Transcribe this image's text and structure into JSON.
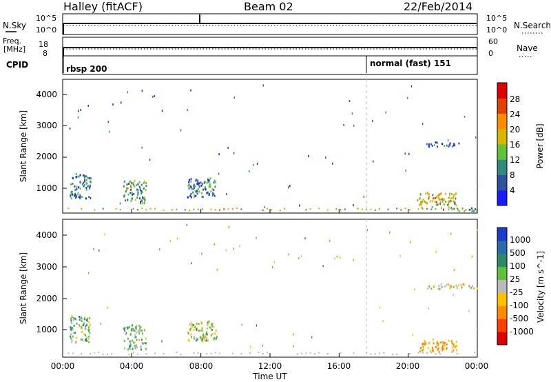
{
  "header": {
    "station": "Halley (fitACF)",
    "beam": "Beam 02",
    "date": "22/Feb/2014"
  },
  "noise_panel": {
    "left_label": "N.Sky",
    "right_label": "N.Search",
    "left_ticks": [
      "10^5",
      "10^0"
    ],
    "right_ticks": [
      "10^5",
      "10^0"
    ]
  },
  "freq_panel": {
    "left_label_top": "Freq.",
    "left_label_unit": "[MHz]",
    "left_ticks": [
      "18",
      "8"
    ],
    "right_label": "Nave",
    "right_ticks": [
      "60",
      "0"
    ]
  },
  "cpid_panel": {
    "label": "CPID",
    "segments": [
      {
        "start_hour": 0.1,
        "text": "rbsp 200"
      },
      {
        "start_hour": 17.55,
        "text": "normal (fast) 151"
      }
    ]
  },
  "power_panel": {
    "ylabel": "Slant Range [km]",
    "yticks": [
      "1000",
      "2000",
      "3000",
      "4000"
    ],
    "colorbar_label": "Power [dB]",
    "colorbar_ticks": [
      "4",
      "8",
      "12",
      "16",
      "20",
      "24",
      "28"
    ],
    "colorbar_colors": [
      "#1a1aff",
      "#2c4f9e",
      "#2f8a7a",
      "#5fc23a",
      "#d9b500",
      "#ff8c00",
      "#e04000",
      "#e00000"
    ]
  },
  "velocity_panel": {
    "ylabel": "Slant Range [km]",
    "yticks": [
      "1000",
      "2000",
      "3000",
      "4000"
    ],
    "colorbar_label": "Velocity [m s^-1]",
    "colorbar_ticks": [
      "1000",
      "500",
      "100",
      "25",
      "-25",
      "-100",
      "-500",
      "-1000"
    ],
    "colorbar_colors": [
      "#1a3cc8",
      "#2a6aa8",
      "#2f8a6a",
      "#5fc23a",
      "#bbbbbb",
      "#ffc000",
      "#ff8c00",
      "#ff4000",
      "#e00000"
    ]
  },
  "time_axis": {
    "label": "Time UT",
    "ticks": [
      "00:00",
      "04:00",
      "08:00",
      "12:00",
      "16:00",
      "20:00",
      "00:00"
    ]
  },
  "chart_data": {
    "type": "heatmap",
    "title": "Halley (fitACF) Beam 02 22/Feb/2014",
    "xlabel": "Time UT",
    "ylabel": "Slant Range [km]",
    "xlim_hours": [
      0,
      24
    ],
    "ylim_km": [
      180,
      4500
    ],
    "dashed_marker_hour": 17.55,
    "power_scatter_clusters": [
      {
        "t_start": 0.4,
        "t_end": 1.6,
        "r_start": 650,
        "r_end": 1500,
        "level": 9
      },
      {
        "t_start": 3.5,
        "t_end": 4.8,
        "r_start": 500,
        "r_end": 1250,
        "level": 11
      },
      {
        "t_start": 7.2,
        "t_end": 8.9,
        "r_start": 700,
        "r_end": 1350,
        "level": 9
      },
      {
        "t_start": 20.5,
        "t_end": 22.8,
        "r_start": 350,
        "r_end": 850,
        "level": 18
      },
      {
        "t_start": 21.0,
        "t_end": 23.0,
        "r_start": 2350,
        "r_end": 2500,
        "level": 6
      },
      {
        "t_start": 22.0,
        "t_end": 24.0,
        "r_start": 250,
        "r_end": 350,
        "level": 10
      }
    ],
    "velocity_scatter_clusters": [
      {
        "t_start": 0.4,
        "t_end": 1.6,
        "r_start": 650,
        "r_end": 1500,
        "value": 50
      },
      {
        "t_start": 3.5,
        "t_end": 4.8,
        "r_start": 400,
        "r_end": 1200,
        "value": 100
      },
      {
        "t_start": 7.2,
        "t_end": 8.9,
        "r_start": 700,
        "r_end": 1350,
        "value": 20
      },
      {
        "t_start": 20.5,
        "t_end": 22.8,
        "r_start": 350,
        "r_end": 750,
        "value": -150
      },
      {
        "t_start": 21.0,
        "t_end": 24.0,
        "r_start": 2350,
        "r_end": 2500,
        "value": -50
      }
    ]
  }
}
